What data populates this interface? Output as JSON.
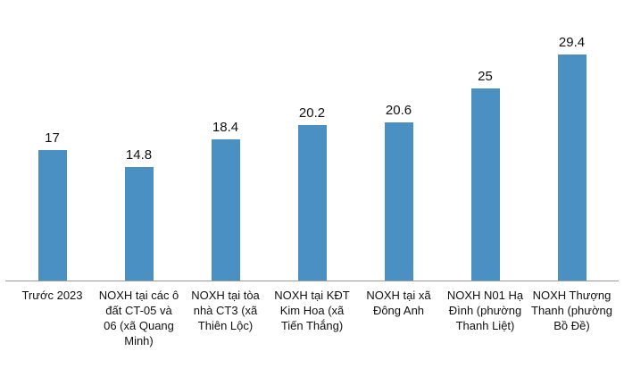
{
  "chart_data": {
    "type": "bar",
    "title": "",
    "xlabel": "",
    "ylabel": "",
    "categories": [
      "Trước 2023",
      "NOXH tại các ô đất CT-05 và 06 (xã Quang Minh)",
      "NOXH tại tòa nhà CT3 (xã Thiên Lộc)",
      "NOXH tại KĐT Kim Hoa (xã Tiến Thắng)",
      "NOXH tại xã Đông Anh",
      "NOXH N01 Hạ Đình (phường Thanh Liệt)",
      "NOXH Thượng Thanh (phường Bồ Đề)"
    ],
    "values": [
      17,
      14.8,
      18.4,
      20.2,
      20.6,
      25,
      29.4
    ],
    "value_labels": [
      "17",
      "14.8",
      "18.4",
      "20.2",
      "20.6",
      "25",
      "29.4"
    ],
    "ylim": [
      0,
      32
    ],
    "grid": false,
    "legend": "none",
    "bar_color": "#4a90c2",
    "axis_line_color": "#9b9b9b"
  }
}
